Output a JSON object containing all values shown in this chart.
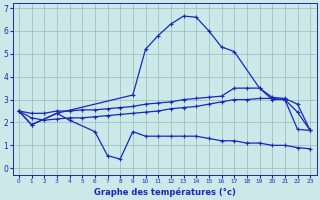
{
  "xlabel": "Graphe des températures (°c)",
  "background_color": "#cce8e8",
  "grid_color": "#99bbbb",
  "line_color": "#1a28bb",
  "ylim": [
    -0.3,
    7.2
  ],
  "xlim": [
    -0.5,
    23.5
  ],
  "line1_x": [
    0,
    1,
    3,
    4,
    6,
    7,
    8,
    9,
    10,
    11,
    12,
    13,
    14,
    15,
    16,
    17,
    18,
    19,
    20,
    21,
    22,
    23
  ],
  "line1_y": [
    2.5,
    1.9,
    2.4,
    2.1,
    1.6,
    0.55,
    0.4,
    1.6,
    1.4,
    1.4,
    1.4,
    1.4,
    1.4,
    1.3,
    1.2,
    1.2,
    1.1,
    1.1,
    1.0,
    1.0,
    0.9,
    0.85
  ],
  "line2_x": [
    0,
    1,
    3,
    9,
    10,
    11,
    12,
    13,
    14,
    15,
    16,
    17,
    19,
    20,
    21,
    22,
    23
  ],
  "line2_y": [
    2.5,
    1.9,
    2.4,
    3.2,
    5.2,
    5.8,
    6.3,
    6.65,
    6.6,
    6.0,
    5.3,
    5.1,
    3.5,
    3.0,
    3.0,
    1.7,
    1.65
  ],
  "line3_x": [
    0,
    1,
    2,
    3,
    4,
    5,
    6,
    7,
    8,
    9,
    10,
    11,
    12,
    13,
    14,
    15,
    16,
    17,
    18,
    19,
    20,
    21,
    22,
    23
  ],
  "line3_y": [
    2.5,
    2.4,
    2.4,
    2.5,
    2.5,
    2.55,
    2.55,
    2.6,
    2.65,
    2.7,
    2.8,
    2.85,
    2.9,
    3.0,
    3.05,
    3.1,
    3.15,
    3.5,
    3.5,
    3.5,
    3.1,
    3.05,
    2.8,
    1.65
  ],
  "line4_x": [
    0,
    1,
    2,
    3,
    4,
    5,
    6,
    7,
    8,
    9,
    10,
    11,
    12,
    13,
    14,
    15,
    16,
    17,
    18,
    19,
    20,
    21,
    22,
    23
  ],
  "line4_y": [
    2.5,
    2.2,
    2.1,
    2.15,
    2.2,
    2.2,
    2.25,
    2.3,
    2.35,
    2.4,
    2.45,
    2.5,
    2.6,
    2.65,
    2.7,
    2.8,
    2.9,
    3.0,
    3.0,
    3.05,
    3.05,
    3.0,
    2.45,
    1.65
  ],
  "yticks": [
    0,
    1,
    2,
    3,
    4,
    5,
    6,
    7
  ],
  "xticks": [
    0,
    1,
    2,
    3,
    4,
    5,
    6,
    7,
    8,
    9,
    10,
    11,
    12,
    13,
    14,
    15,
    16,
    17,
    18,
    19,
    20,
    21,
    22,
    23
  ]
}
